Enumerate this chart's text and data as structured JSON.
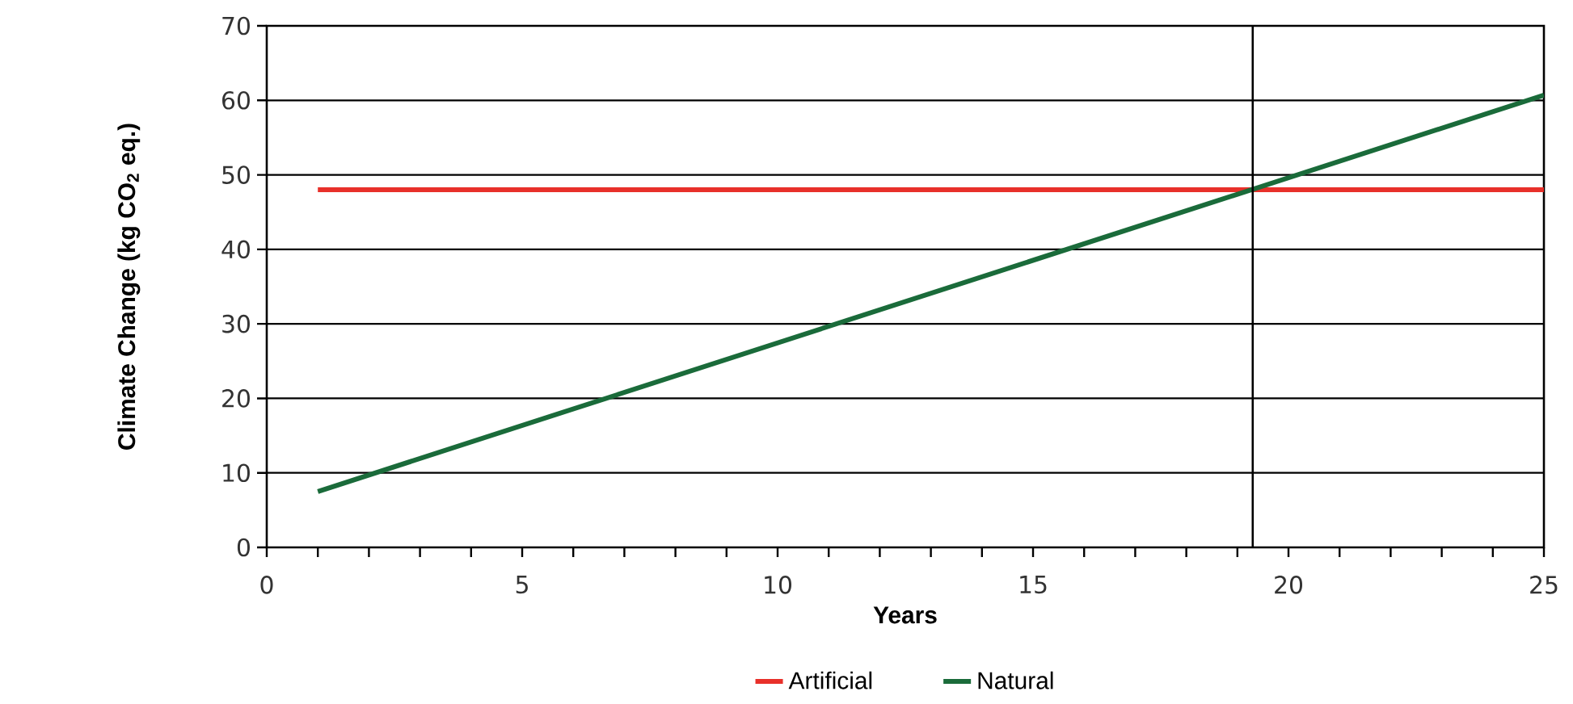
{
  "chart_data": {
    "type": "line",
    "xlabel": "Years",
    "ylabel": "Climate Change (kg CO$_{2}$ eq.)",
    "xlim": [
      0,
      25
    ],
    "ylim": [
      0,
      70
    ],
    "xticks": [
      0,
      {
        "value": 1,
        "label": null
      },
      {
        "value": 2,
        "label": null
      },
      {
        "value": 3,
        "label": null
      },
      {
        "value": 4,
        "label": null
      },
      5,
      {
        "value": 6,
        "label": null
      },
      {
        "value": 7,
        "label": null
      },
      {
        "value": 8,
        "label": null
      },
      {
        "value": 9,
        "label": null
      },
      10,
      {
        "value": 11,
        "label": null
      },
      {
        "value": 12,
        "label": null
      },
      {
        "value": 13,
        "label": null
      },
      {
        "value": 14,
        "label": null
      },
      15,
      {
        "value": 16,
        "label": null
      },
      {
        "value": 17,
        "label": null
      },
      {
        "value": 18,
        "label": null
      },
      {
        "value": 19,
        "label": null
      },
      20,
      {
        "value": 21,
        "label": null
      },
      {
        "value": 22,
        "label": null
      },
      {
        "value": 23,
        "label": null
      },
      {
        "value": 24,
        "label": null
      },
      25
    ],
    "yticks": [
      0,
      10,
      20,
      30,
      40,
      50,
      60,
      70
    ],
    "x": [
      1,
      25
    ],
    "grid": "y",
    "legend": "bottom",
    "marker": "none",
    "line_style": "solid",
    "series": [
      {
        "name": "Artificial",
        "color": "#e8302a",
        "values": [
          48,
          48
        ]
      },
      {
        "name": "Natural",
        "color": "#1a6b3a",
        "values": [
          7.5,
          60.7
        ]
      }
    ],
    "ref_lines": [
      {
        "axis": "x",
        "value": 19.3,
        "label": null,
        "color": "#000000"
      }
    ]
  }
}
